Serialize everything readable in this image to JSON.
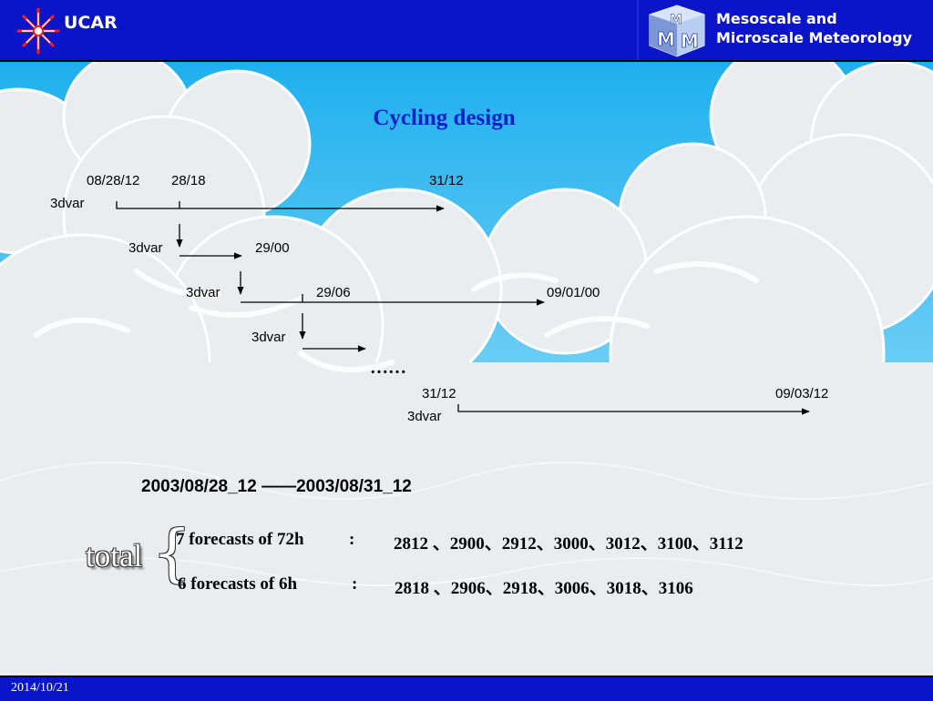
{
  "header": {
    "logo_text": "UCAR",
    "brand_line1": "Mesoscale and",
    "brand_line2": "Microscale Meteorology"
  },
  "slide": {
    "title": "Cycling design",
    "timeline": {
      "d1": "08/28/12",
      "d2": "28/18",
      "d3": "31/12",
      "v1": "3dvar",
      "v2": "3dvar",
      "d4": "29/00",
      "v3": "3dvar",
      "d5": "29/06",
      "d6": "09/01/00",
      "v4": "3dvar",
      "ellipsis": "……",
      "d7": "31/12",
      "d8": "09/03/12",
      "v5": "3dvar"
    },
    "period": "2003/08/28_12 ——2003/08/31_12",
    "total_label": "total",
    "forecasts": [
      {
        "label": "7 forecasts of 72h",
        "sep": ":",
        "runs": "2812 、2900、2912、3000、3012、3100、3112"
      },
      {
        "label": "6 forecasts of 6h",
        "sep": ":",
        "runs": "2818 、2906、2918、3006、3018、3106"
      }
    ]
  },
  "footer": {
    "date": "2014/10/21"
  }
}
